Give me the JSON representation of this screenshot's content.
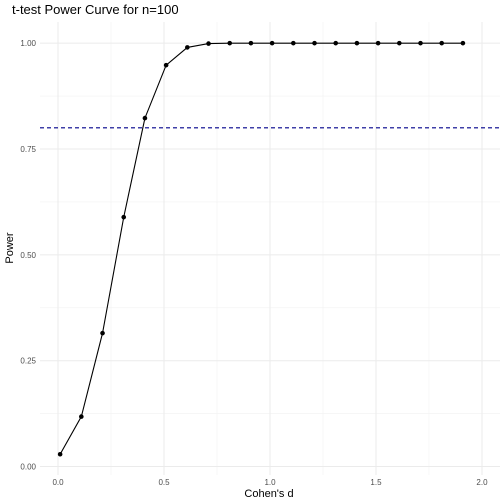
{
  "chart_data": {
    "type": "line",
    "title": "t-test Power Curve for n=100",
    "xlabel": "Cohen's d",
    "ylabel": "Power",
    "xlim": [
      -0.085,
      2.085
    ],
    "ylim": [
      -0.02,
      1.05
    ],
    "x_ticks": [
      0.0,
      0.5,
      1.0,
      1.5,
      2.0
    ],
    "x_tick_labels": [
      "0.0",
      "0.5",
      "1.0",
      "1.5",
      "2.0"
    ],
    "y_ticks": [
      0.0,
      0.25,
      0.5,
      0.75,
      1.0
    ],
    "y_tick_labels": [
      "0.00",
      "0.25",
      "0.50",
      "0.75",
      "1.00"
    ],
    "grid": true,
    "series": [
      {
        "color": "#000000",
        "markers": true,
        "x": [
          0.01,
          0.11,
          0.21,
          0.31,
          0.41,
          0.51,
          0.61,
          0.71,
          0.81,
          0.91,
          1.01,
          1.11,
          1.21,
          1.31,
          1.41,
          1.51,
          1.61,
          1.71,
          1.81,
          1.91
        ],
        "y": [
          0.029,
          0.118,
          0.315,
          0.589,
          0.823,
          0.948,
          0.99,
          0.999,
          1.0,
          1.0,
          1.0,
          1.0,
          1.0,
          1.0,
          1.0,
          1.0,
          1.0,
          1.0,
          1.0,
          1.0
        ]
      }
    ],
    "reference_line": {
      "orientation": "horizontal",
      "y": 0.8,
      "color": "#00008b",
      "style": "dashed"
    }
  }
}
